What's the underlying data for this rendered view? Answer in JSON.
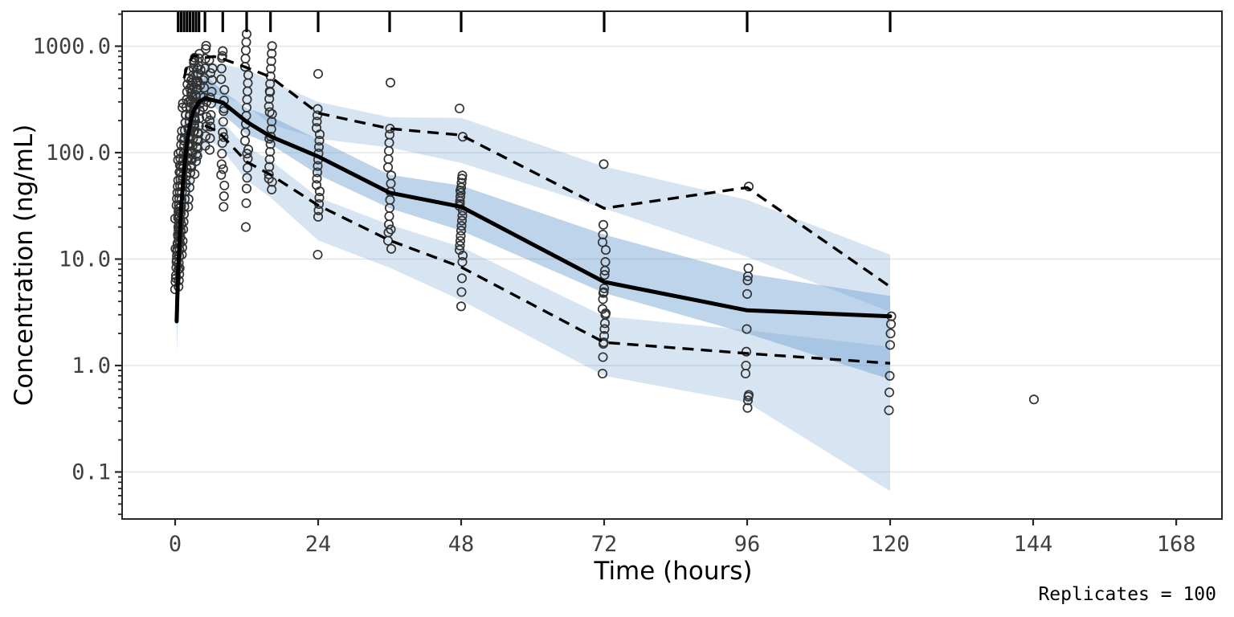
{
  "chart_data": {
    "type": "line",
    "subtype": "visual-predictive-check",
    "title": "",
    "xlabel": "Time (hours)",
    "ylabel": "Concentration (ng/mL)",
    "caption": "Replicates = 100",
    "x_axis": {
      "tick_values": [
        0,
        24,
        48,
        72,
        96,
        120,
        144,
        168
      ],
      "tick_labels": [
        "0",
        "24",
        "48",
        "72",
        "96",
        "120",
        "144",
        "168"
      ],
      "range_hours": [
        -9,
        176
      ],
      "grid": false
    },
    "y_axis": {
      "scale": "log10",
      "tick_values": [
        1000,
        100,
        10,
        1,
        0.1
      ],
      "tick_labels": [
        "1000.0",
        "100.0",
        "10.0",
        "1.0",
        "0.1"
      ],
      "range": [
        0.036,
        2100
      ],
      "grid": true
    },
    "legend_position": "none",
    "rug_times": [
      0.5,
      1,
      1.5,
      2,
      2.5,
      3,
      3.5,
      4,
      5,
      8,
      12,
      16,
      24,
      36,
      48,
      72,
      96,
      120
    ],
    "series": {
      "observed_median": {
        "name": "observed median (solid)",
        "x": [
          0.25,
          0.5,
          1,
          1.5,
          2,
          2.5,
          3,
          4,
          5,
          6,
          8,
          12,
          16,
          24,
          36,
          48,
          72,
          96,
          120
        ],
        "y": [
          2.6,
          8,
          30,
          70,
          125,
          185,
          240,
          300,
          325,
          315,
          295,
          195,
          142,
          92,
          42,
          31,
          6.1,
          3.3,
          2.9
        ]
      },
      "observed_p95": {
        "name": "observed 95th percentile (dashed)",
        "x": [
          1.5,
          2,
          3,
          5,
          6.5,
          8,
          12,
          16,
          24,
          36,
          48,
          72,
          96,
          120
        ],
        "y": [
          500,
          650,
          820,
          780,
          800,
          760,
          630,
          515,
          235,
          168,
          146,
          30,
          47,
          5.5
        ]
      },
      "observed_p05": {
        "name": "observed 5th percentile (dashed)",
        "x": [
          5,
          7,
          8,
          12,
          16,
          24,
          36,
          48,
          72,
          96,
          120
        ],
        "y": [
          180,
          160,
          142,
          82,
          62,
          32,
          15,
          8.4,
          1.65,
          1.3,
          1.05
        ]
      }
    },
    "ribbons": [
      {
        "name": "simulated-ci-5th",
        "x": [
          0.4,
          1,
          2,
          3,
          4,
          6,
          8,
          12,
          16,
          24,
          36,
          48,
          72,
          96,
          120
        ],
        "hi": [
          5.5,
          14,
          50,
          110,
          175,
          230,
          195,
          112,
          85,
          38,
          21,
          13,
          2.9,
          2.15,
          1.5
        ],
        "lo": [
          3.0,
          6,
          25,
          60,
          95,
          130,
          105,
          55,
          38,
          15,
          8.3,
          4.1,
          0.8,
          0.45,
          0.066
        ],
        "opacity": 0.28
      },
      {
        "name": "simulated-ci-95th",
        "x": [
          1,
          2,
          3,
          4,
          6,
          8,
          12,
          16,
          24,
          36,
          48,
          72,
          96,
          120
        ],
        "hi": [
          130,
          360,
          530,
          640,
          700,
          670,
          610,
          470,
          300,
          215,
          212,
          74,
          36,
          11
        ],
        "lo": [
          50,
          150,
          240,
          310,
          350,
          345,
          275,
          185,
          135,
          112,
          80,
          30,
          10.5,
          3.2
        ],
        "opacity": 0.28
      },
      {
        "name": "simulated-ci-median",
        "x": [
          0.3,
          0.5,
          1,
          2,
          3,
          4,
          5,
          6,
          8,
          12,
          16,
          24,
          36,
          48,
          72,
          96,
          120
        ],
        "hi": [
          4,
          12,
          42,
          170,
          310,
          430,
          520,
          480,
          380,
          262,
          220,
          133,
          62,
          49,
          17,
          7.3,
          4.5
        ],
        "lo": [
          1.2,
          4,
          16,
          85,
          160,
          230,
          300,
          290,
          228,
          148,
          120,
          62,
          30,
          18.5,
          4.8,
          2.0,
          0.74
        ],
        "opacity": 0.45
      }
    ],
    "observed_points": [
      {
        "t": 0.25,
        "values": [
          5.2,
          6.1,
          7.0,
          8.3,
          9.9,
          11.8,
          14,
          17,
          20,
          24,
          12.5,
          6.6
        ]
      },
      {
        "t": 0.5,
        "values": [
          5.5,
          6.3,
          7.2,
          8.2,
          9.4,
          10.8,
          12.4,
          14.2,
          16.3,
          18.7,
          21.4,
          24.5,
          28,
          32,
          37,
          42,
          48,
          55,
          26,
          15
        ]
      },
      {
        "t": 0.75,
        "values": [
          8.0,
          9.2,
          10.6,
          12.2,
          14,
          16.1,
          18.5,
          21.2,
          24.4,
          28,
          32.2,
          37,
          42.5,
          48.9,
          56.2,
          64.6,
          74.2,
          85.3,
          98,
          30
        ]
      },
      {
        "t": 1,
        "values": [
          11,
          12.8,
          14.8,
          17.2,
          20,
          23.2,
          26.9,
          31.2,
          36.2,
          42,
          48.7,
          56.5,
          65.5,
          76,
          88.1,
          102,
          118.5,
          137.5,
          159.5,
          48
        ]
      },
      {
        "t": 1.5,
        "values": [
          19,
          22.4,
          26.4,
          31.1,
          36.7,
          43.3,
          51,
          60.2,
          71,
          83.7,
          98.7,
          116.4,
          137.3,
          161.9,
          190.9,
          225.2,
          265.6,
          290,
          75,
          130
        ]
      },
      {
        "t": 2,
        "values": [
          31,
          36.6,
          43.2,
          51,
          60.2,
          71,
          83.8,
          98.9,
          116.7,
          137.7,
          162.5,
          191.7,
          226.2,
          266.9,
          315,
          371.7,
          438.6,
          90,
          170,
          300
        ]
      },
      {
        "t": 2.5,
        "values": [
          47,
          55,
          64.4,
          75.4,
          88.3,
          103.4,
          121,
          141.7,
          165.9,
          194.2,
          227.4,
          266.2,
          311.7,
          364.9,
          427.2,
          500.2,
          585.6,
          120,
          220,
          400
        ]
      },
      {
        "t": 3,
        "values": [
          63,
          73.4,
          85.5,
          99.6,
          116,
          135.2,
          157.5,
          183.5,
          213.8,
          249.1,
          290.2,
          338.1,
          393.9,
          458.9,
          534.6,
          622.9,
          700,
          160,
          280,
          480
        ]
      },
      {
        "t": 3.5,
        "values": [
          83,
          96.9,
          113.1,
          132.1,
          154.2,
          180,
          210.2,
          245.4,
          286.5,
          334.5,
          390.5,
          455.9,
          532.3,
          621.4,
          725.5,
          780,
          200,
          350
        ]
      },
      {
        "t": 4,
        "values": [
          93,
          109.4,
          128.7,
          151.4,
          178.1,
          209.5,
          246.4,
          289.9,
          341,
          401.2,
          472,
          555.3,
          653.2,
          768.4,
          850,
          250,
          430,
          600
        ]
      },
      {
        "t": 5,
        "values": [
          116,
          143,
          176.3,
          217.3,
          267.9,
          330.3,
          407.2,
          502,
          618.9,
          763,
          940.6,
          1010,
          300,
          480
        ]
      },
      {
        "t": 6,
        "values": [
          106,
          136.4,
          175.5,
          225.8,
          290.5,
          373.8,
          480.9,
          618.8,
          740,
          200,
          330,
          560
        ]
      },
      {
        "t": 8,
        "values": [
          31,
          39,
          49.1,
          61.8,
          77.8,
          97.9,
          123.2,
          155.1,
          195.2,
          245.7,
          309.2,
          389.2,
          489.8,
          616.5,
          775.9,
          810,
          900,
          70,
          140,
          260
        ]
      },
      {
        "t": 12,
        "values": [
          20,
          33.5,
          46,
          58,
          72,
          88,
          107,
          129,
          155,
          186,
          222,
          265,
          316,
          377,
          450,
          537,
          641,
          765,
          913,
          1090,
          1300,
          98
        ]
      },
      {
        "t": 16,
        "values": [
          45,
          53,
          62.4,
          73.5,
          86.5,
          101.9,
          120,
          141.3,
          166.4,
          195.9,
          230.7,
          271.7,
          319.9,
          376.7,
          443.6,
          522.3,
          615,
          724.2,
          852.8,
          1004,
          57,
          135,
          240,
          370
        ]
      },
      {
        "t": 24,
        "values": [
          11,
          25,
          28.7,
          32.9,
          37.7,
          43.3,
          49.6,
          56.9,
          65.3,
          74.9,
          85.9,
          98.5,
          113,
          129.6,
          148.7,
          170.5,
          195.6,
          224.3,
          257.3,
          550
        ]
      },
      {
        "t": 36,
        "values": [
          12.5,
          14.9,
          17.8,
          21.2,
          25.3,
          30.2,
          36,
          42.9,
          51.2,
          61.1,
          72.9,
          87,
          103.8,
          123.8,
          147.7,
          168,
          455,
          19
        ]
      },
      {
        "t": 48,
        "values": [
          3.6,
          4.9,
          6.6,
          9.4,
          10.8,
          12.2,
          13.4,
          14.8,
          16.5,
          18.5,
          20.5,
          23,
          25.5,
          28.5,
          31.5,
          35,
          38.6,
          42,
          47,
          52,
          57,
          61,
          141,
          260,
          33,
          44
        ]
      },
      {
        "t": 72,
        "values": [
          0.84,
          1.2,
          1.6,
          1.65,
          1.9,
          2.2,
          2.5,
          3.0,
          3.1,
          3.4,
          4.2,
          4.8,
          4.9,
          5.3,
          7.1,
          7.8,
          9.4,
          12.2,
          14.4,
          17,
          21,
          78
        ]
      },
      {
        "t": 96,
        "values": [
          0.4,
          0.47,
          0.51,
          0.53,
          0.84,
          1.0,
          1.35,
          2.2,
          4.7,
          6.3,
          6.9,
          8.2,
          48
        ]
      },
      {
        "t": 120,
        "values": [
          0.38,
          0.56,
          0.8,
          1.56,
          2.0,
          2.45,
          2.9
        ]
      },
      {
        "t": 144,
        "values": [
          0.48
        ]
      }
    ],
    "colors": {
      "ribbon_fill": "#6ea0d2",
      "line": "#000000",
      "point_stroke": "#333333",
      "grid": "#e5e5e5",
      "panel_border": "#262626",
      "tick_text": "#404040",
      "tick_mark": "#262626",
      "background": "#ffffff"
    }
  }
}
